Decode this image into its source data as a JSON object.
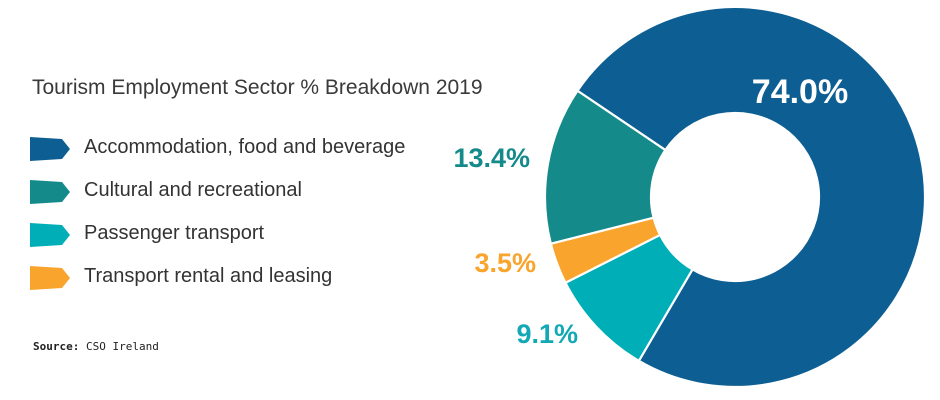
{
  "chart_data": {
    "type": "pie",
    "title": "Tourism Employment Sector % Breakdown 2019",
    "donut": true,
    "legend_position": "left",
    "series": [
      {
        "name": "Accommodation, food and beverage",
        "value": 74.0,
        "label": "74.0%",
        "color": "#0d5f93",
        "label_color": "#ffffff"
      },
      {
        "name": "Passenger transport",
        "value": 9.1,
        "label": "9.1%",
        "color": "#00aeb8",
        "label_color": "#13a8b5"
      },
      {
        "name": "Transport rental and leasing",
        "value": 3.5,
        "label": "3.5%",
        "color": "#f9a42c",
        "label_color": "#f9a42c"
      },
      {
        "name": "Cultural and recreational",
        "value": 13.4,
        "label": "13.4%",
        "color": "#158a8a",
        "label_color": "#158a8a"
      }
    ]
  },
  "legend": [
    {
      "label": "Accommodation, food and beverage",
      "color": "#0d5f93"
    },
    {
      "label": "Cultural and recreational",
      "color": "#158a8a"
    },
    {
      "label": "Passenger transport",
      "color": "#00aeb8"
    },
    {
      "label": "Transport rental and leasing",
      "color": "#f9a42c"
    }
  ],
  "source": {
    "key": "Source:",
    "value": "CSO Ireland"
  }
}
